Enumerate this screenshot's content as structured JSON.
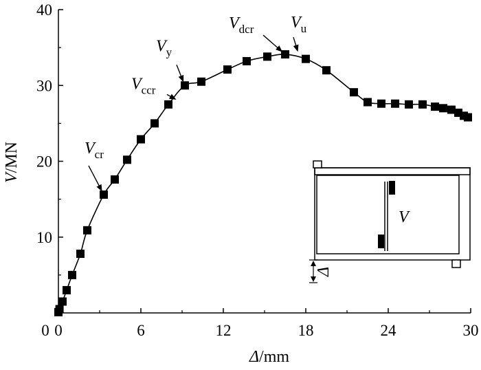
{
  "chart_data": {
    "type": "line",
    "xlabel": {
      "sym": "Δ",
      "unit": "/mm"
    },
    "ylabel": {
      "sym": "V",
      "unit": "/MN"
    },
    "xlim": [
      0,
      30
    ],
    "ylim": [
      0,
      40
    ],
    "xticks": [
      "0",
      "6",
      "12",
      "18",
      "24",
      "30"
    ],
    "yticks": [
      "10",
      "20",
      "30",
      "40"
    ],
    "grid": false,
    "series": [
      {
        "marker": "square",
        "color": "#000000",
        "x": [
          0.0,
          0.08,
          0.3,
          0.6,
          1.0,
          1.6,
          2.1,
          3.3,
          4.1,
          5.0,
          6.0,
          7.0,
          8.0,
          9.2,
          10.4,
          12.3,
          13.7,
          15.2,
          16.5,
          18.0,
          19.5,
          21.5,
          22.5,
          23.5,
          24.5,
          25.5,
          26.5,
          27.4,
          28.0,
          28.6,
          29.1,
          29.5,
          29.8
        ],
        "y": [
          0.1,
          0.5,
          1.5,
          3.0,
          5.0,
          7.8,
          10.9,
          15.6,
          17.6,
          20.2,
          22.9,
          25.0,
          27.5,
          30.0,
          30.5,
          32.1,
          33.2,
          33.8,
          34.1,
          33.5,
          32.0,
          29.1,
          27.8,
          27.6,
          27.6,
          27.5,
          27.5,
          27.2,
          27.0,
          26.8,
          26.4,
          26.0,
          25.8
        ]
      }
    ],
    "annotations": [
      {
        "sym": "V",
        "sub": "cr",
        "point": [
          3.3,
          15.6
        ]
      },
      {
        "sym": "V",
        "sub": "ccr",
        "point": [
          8.8,
          27.9
        ]
      },
      {
        "sym": "V",
        "sub": "y",
        "point": [
          9.2,
          30.0
        ]
      },
      {
        "sym": "V",
        "sub": "dcr",
        "point": [
          16.5,
          34.1
        ]
      },
      {
        "sym": "V",
        "sub": "u",
        "point": [
          17.5,
          34.0
        ]
      }
    ],
    "inset": {
      "force_label": "V",
      "disp_label": "Δ"
    }
  }
}
